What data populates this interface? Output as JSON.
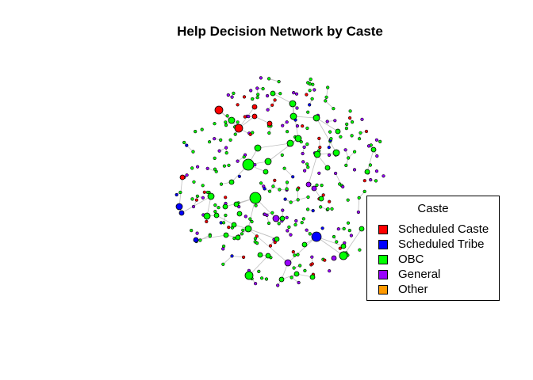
{
  "title": "Help Decision Network by Caste",
  "legend": {
    "title": "Caste",
    "items": [
      {
        "label": "Scheduled Caste",
        "color": "#FF0000"
      },
      {
        "label": "Scheduled Tribe",
        "color": "#0000FF"
      },
      {
        "label": "OBC",
        "color": "#00FF00"
      },
      {
        "label": "General",
        "color": "#9900FF"
      },
      {
        "label": "Other",
        "color": "#FF9900"
      }
    ]
  },
  "colors": {
    "edge": "#bfbfbf",
    "node_stroke": "#000000"
  }
}
